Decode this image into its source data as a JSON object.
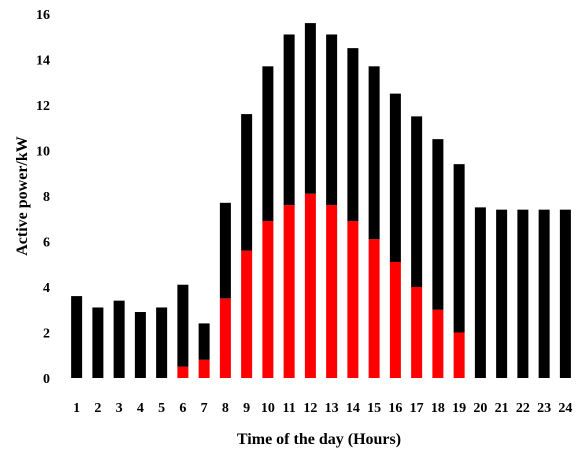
{
  "chart_data": {
    "type": "bar",
    "stacked": true,
    "title": "",
    "xlabel": "Time of the day (Hours)",
    "ylabel": "Active power/kW",
    "ylim": [
      0,
      16
    ],
    "yticks": [
      0,
      2,
      4,
      6,
      8,
      10,
      12,
      14,
      16
    ],
    "grid": false,
    "legend": "none",
    "categories": [
      "1",
      "2",
      "3",
      "4",
      "5",
      "6",
      "7",
      "8",
      "9",
      "10",
      "11",
      "12",
      "13",
      "14",
      "15",
      "16",
      "17",
      "18",
      "19",
      "20",
      "21",
      "22",
      "23",
      "24"
    ],
    "series": [
      {
        "color": "#ff0000",
        "values": [
          0,
          0,
          0,
          0,
          0,
          0.5,
          0.8,
          3.5,
          5.6,
          6.9,
          7.6,
          8.1,
          7.6,
          6.9,
          6.1,
          5.1,
          4.0,
          3.0,
          2.0,
          0,
          0,
          0,
          0,
          0
        ]
      },
      {
        "color": "#000000",
        "values": [
          3.6,
          3.1,
          3.4,
          2.9,
          3.1,
          3.6,
          1.6,
          4.2,
          6.0,
          6.8,
          7.5,
          7.5,
          7.5,
          7.6,
          7.6,
          7.4,
          7.5,
          7.5,
          7.4,
          7.5,
          7.4,
          7.4,
          7.4,
          7.4
        ]
      }
    ]
  }
}
